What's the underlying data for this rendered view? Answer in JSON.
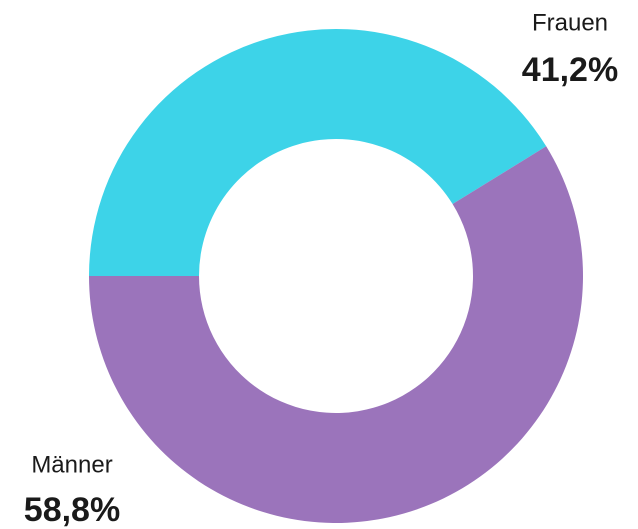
{
  "chart_data": {
    "type": "donut",
    "categories": [
      "Frauen",
      "Männer"
    ],
    "values": [
      41.2,
      58.8
    ],
    "value_labels": [
      "41,2%",
      "58,8%"
    ],
    "colors": [
      "#3dd3e8",
      "#9b74bb"
    ]
  }
}
